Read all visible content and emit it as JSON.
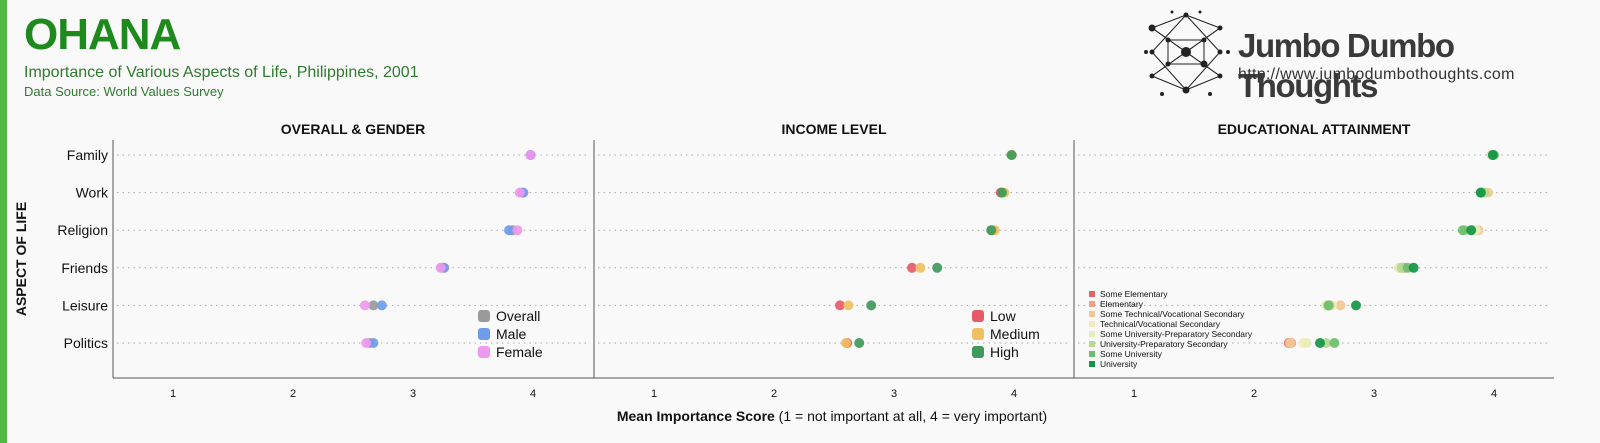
{
  "header": {
    "title": "OHANA",
    "subtitle": "Importance of Various Aspects of Life, Philippines, 2001",
    "source": "Data Source: World Values Survey"
  },
  "brand": {
    "name": "Jumbo Dumbo Thoughts",
    "url": "http://www.jumbodumbothoughts.com"
  },
  "chart_data": {
    "type": "scatter",
    "ylabel": "ASPECT OF LIFE",
    "xlabel_bold": "Mean Importance Score",
    "xlabel_rest": "(1 = not important at all, 4 = very important)",
    "categories": [
      "Family",
      "Work",
      "Religion",
      "Friends",
      "Leisure",
      "Politics"
    ],
    "xlim": [
      0.5,
      4.5
    ],
    "xticks": [
      "1",
      "2",
      "3",
      "4"
    ],
    "panels": [
      {
        "title": "OVERALL & GENDER",
        "legend_style": "large",
        "series": [
          {
            "name": "Overall",
            "color": "#9a9a9a",
            "values": [
              3.98,
              3.91,
              3.83,
              3.25,
              2.67,
              2.64
            ]
          },
          {
            "name": "Male",
            "color": "#6f9cea",
            "values": [
              3.98,
              3.92,
              3.8,
              3.26,
              2.74,
              2.67
            ]
          },
          {
            "name": "Female",
            "color": "#ee98ee",
            "values": [
              3.98,
              3.89,
              3.87,
              3.23,
              2.6,
              2.61
            ]
          }
        ]
      },
      {
        "title": "INCOME LEVEL",
        "legend_style": "large",
        "series": [
          {
            "name": "Low",
            "color": "#e85a6a",
            "values": [
              3.98,
              3.89,
              3.82,
              3.15,
              2.55,
              2.61
            ]
          },
          {
            "name": "Medium",
            "color": "#f0c060",
            "values": [
              3.98,
              3.92,
              3.84,
              3.22,
              2.62,
              2.6
            ]
          },
          {
            "name": "High",
            "color": "#3f9a5a",
            "values": [
              3.98,
              3.9,
              3.81,
              3.36,
              2.81,
              2.71
            ]
          }
        ]
      },
      {
        "title": "EDUCATIONAL ATTAINMENT",
        "legend_style": "small",
        "series": [
          {
            "name": "Some Elementary",
            "color": "#e06666",
            "values": [
              3.98,
              3.9,
              3.82,
              3.25,
              2.62,
              2.29
            ]
          },
          {
            "name": "Elementary",
            "color": "#f0a080",
            "values": [
              3.98,
              3.91,
              3.84,
              3.24,
              2.64,
              2.31
            ]
          },
          {
            "name": "Some Technical/Vocational Secondary",
            "color": "#f2c890",
            "values": [
              3.99,
              3.95,
              3.87,
              3.21,
              2.72,
              2.3
            ]
          },
          {
            "name": "Technical/Vocational Secondary",
            "color": "#f6eab8",
            "values": [
              3.98,
              3.91,
              3.83,
              3.23,
              2.65,
              2.41
            ]
          },
          {
            "name": "Some University-Preparatory Secondary",
            "color": "#e4efb8",
            "values": [
              3.99,
              3.9,
              3.85,
              3.21,
              2.6,
              2.44
            ]
          },
          {
            "name": "University-Preparatory Secondary",
            "color": "#b4d890",
            "values": [
              3.99,
              3.92,
              3.76,
              3.23,
              2.63,
              2.6
            ]
          },
          {
            "name": "Some University",
            "color": "#6cbf6c",
            "values": [
              4.0,
              3.89,
              3.74,
              3.28,
              2.62,
              2.67
            ]
          },
          {
            "name": "University",
            "color": "#139648",
            "values": [
              3.99,
              3.89,
              3.81,
              3.33,
              2.85,
              2.55
            ]
          }
        ]
      }
    ]
  }
}
